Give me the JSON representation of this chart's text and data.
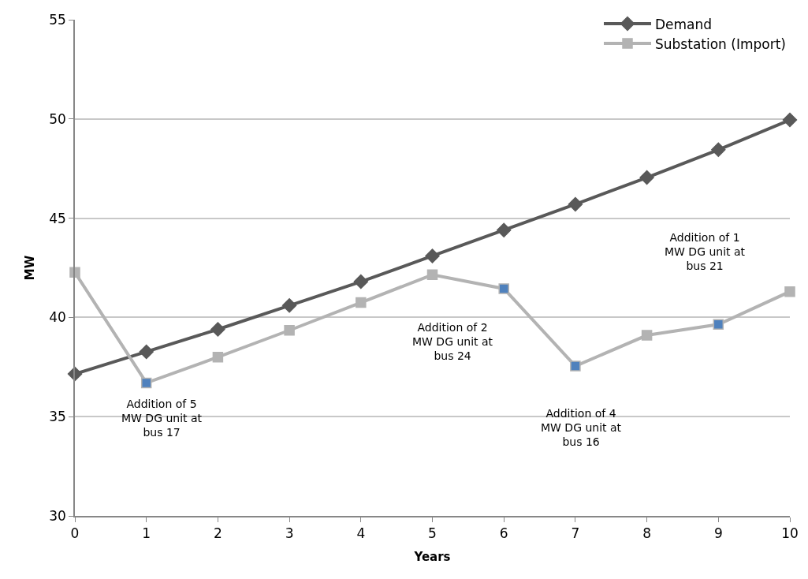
{
  "chart_data": {
    "type": "line",
    "xlabel": "Years",
    "ylabel": "MW",
    "x": [
      0,
      1,
      2,
      3,
      4,
      5,
      6,
      7,
      8,
      9,
      10
    ],
    "series": [
      {
        "name": "Demand",
        "color": "#595959",
        "marker": "diamond",
        "values": [
          37.15,
          38.27,
          39.4,
          40.6,
          41.8,
          43.1,
          44.4,
          45.7,
          47.05,
          48.45,
          49.95
        ]
      },
      {
        "name": "Substation (Import)",
        "color": "#b3b3b3",
        "marker": "square",
        "colors": [
          "#b3b3b3",
          "#4f81bd",
          "#b3b3b3",
          "#b3b3b3",
          "#b3b3b3",
          "#b3b3b3",
          "#4f81bd",
          "#4f81bd",
          "#b3b3b3",
          "#4f81bd",
          "#b3b3b3"
        ],
        "values": [
          42.27,
          36.7,
          38.0,
          39.35,
          40.75,
          42.15,
          41.45,
          37.55,
          39.1,
          39.65,
          41.3
        ]
      }
    ],
    "annotations": [
      "Addition of 5\nMW DG unit at\nbus 17",
      "Addition of 2\nMW DG unit at\nbus 24",
      "Addition of 4\nMW DG unit at\nbus 16",
      "Addition of 1\nMW DG unit at\nbus 21"
    ],
    "xlim": [
      0,
      10
    ],
    "xticks": [
      0,
      1,
      2,
      3,
      4,
      5,
      6,
      7,
      8,
      9,
      10
    ],
    "ylim": [
      30,
      55
    ],
    "yticks": [
      30,
      35,
      40,
      45,
      50,
      55
    ],
    "grid": "y",
    "legend": "top right",
    "line_style": "solid"
  }
}
